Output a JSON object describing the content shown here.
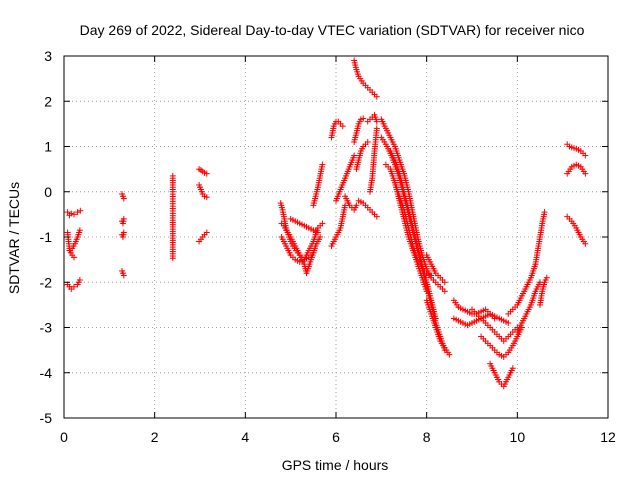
{
  "chart_data": {
    "type": "scatter",
    "title": "Day 269 of 2022, Sidereal Day-to-day VTEC variation (SDTVAR) for receiver nico",
    "xlabel": "GPS time / hours",
    "ylabel": "SDTVAR / TECUs",
    "xlim": [
      0,
      12
    ],
    "ylim": [
      -5,
      3
    ],
    "xticks": [
      0,
      2,
      4,
      6,
      8,
      10,
      12
    ],
    "yticks": [
      -5,
      -4,
      -3,
      -2,
      -1,
      0,
      1,
      2,
      3
    ],
    "xtick_labels": [
      "0",
      "2",
      "4",
      "6",
      "8",
      "10",
      "12"
    ],
    "ytick_labels": [
      "-5",
      "-4",
      "-3",
      "-2",
      "-1",
      "0",
      "1",
      "2",
      "3"
    ],
    "grid": true,
    "marker": "plus",
    "color": "#ff0000",
    "segments": [
      {
        "x": [
          0.08,
          0.12,
          0.16,
          0.22,
          0.3,
          0.36
        ],
        "y": [
          -0.45,
          -0.52,
          -0.48,
          -0.5,
          -0.45,
          -0.42
        ]
      },
      {
        "x": [
          0.08,
          0.1,
          0.12,
          0.15,
          0.18,
          0.22
        ],
        "y": [
          -0.9,
          -1.1,
          -1.25,
          -1.35,
          -1.4,
          -1.45
        ]
      },
      {
        "x": [
          0.12,
          0.18,
          0.24,
          0.3,
          0.35
        ],
        "y": [
          -1.3,
          -1.25,
          -1.15,
          -1.0,
          -0.85
        ]
      },
      {
        "x": [
          0.08,
          0.12,
          0.16,
          0.22,
          0.3,
          0.35
        ],
        "y": [
          -2.05,
          -2.1,
          -2.15,
          -2.1,
          -2.05,
          -1.95
        ]
      },
      {
        "x": [
          1.28,
          1.3,
          1.32
        ],
        "y": [
          -0.05,
          -0.1,
          -0.15
        ]
      },
      {
        "x": [
          1.28,
          1.3,
          1.32
        ],
        "y": [
          -0.65,
          -0.7,
          -0.6
        ]
      },
      {
        "x": [
          1.28,
          1.3,
          1.32
        ],
        "y": [
          -0.95,
          -1.0,
          -0.9
        ]
      },
      {
        "x": [
          1.28,
          1.3,
          1.32
        ],
        "y": [
          -1.75,
          -1.8,
          -1.85
        ]
      },
      {
        "x": [
          2.4,
          2.4,
          2.4,
          2.4
        ],
        "y": [
          0.35,
          0.0,
          -0.53,
          -1.47
        ]
      },
      {
        "x": [
          2.98,
          3.02,
          3.06,
          3.1,
          3.15
        ],
        "y": [
          0.5,
          0.48,
          0.45,
          0.42,
          0.4
        ]
      },
      {
        "x": [
          2.98,
          3.02,
          3.06,
          3.1,
          3.15
        ],
        "y": [
          0.15,
          0.05,
          -0.05,
          -0.1,
          -0.12
        ]
      },
      {
        "x": [
          2.98,
          3.02,
          3.06,
          3.1,
          3.15
        ],
        "y": [
          -1.1,
          -1.05,
          -1.0,
          -0.95,
          -0.9
        ]
      },
      {
        "x": [
          4.78,
          4.82,
          4.86,
          4.9,
          4.95,
          5.0,
          5.05,
          5.12,
          5.2,
          5.3,
          5.4,
          5.5
        ],
        "y": [
          -0.25,
          -0.4,
          -0.6,
          -0.8,
          -0.95,
          -1.1,
          -1.2,
          -1.3,
          -1.4,
          -1.5,
          -1.45,
          -1.35
        ]
      },
      {
        "x": [
          4.8,
          4.85,
          4.9,
          5.0,
          5.1,
          5.2,
          5.3,
          5.35,
          5.45,
          5.55,
          5.65
        ],
        "y": [
          -0.7,
          -0.75,
          -0.85,
          -1.0,
          -1.2,
          -1.4,
          -1.6,
          -1.8,
          -1.5,
          -1.2,
          -1.0
        ]
      },
      {
        "x": [
          4.8,
          4.9,
          5.0,
          5.1,
          5.2,
          5.3,
          5.4,
          5.5,
          5.6,
          5.7
        ],
        "y": [
          -1.0,
          -1.2,
          -1.4,
          -1.5,
          -1.55,
          -1.5,
          -1.3,
          -1.1,
          -0.8,
          -0.7
        ]
      },
      {
        "x": [
          5.0,
          5.1,
          5.2,
          5.3,
          5.4,
          5.5,
          5.6
        ],
        "y": [
          -0.6,
          -0.65,
          -0.7,
          -0.75,
          -0.8,
          -0.85,
          -0.9
        ]
      },
      {
        "x": [
          5.5,
          5.55,
          5.6,
          5.65,
          5.7
        ],
        "y": [
          -0.3,
          -0.1,
          0.1,
          0.35,
          0.6
        ]
      },
      {
        "x": [
          5.9,
          6.0,
          6.1,
          6.15,
          6.2
        ],
        "y": [
          -1.2,
          -1.0,
          -0.8,
          -0.55,
          -0.3
        ]
      },
      {
        "x": [
          5.9,
          5.95,
          6.0,
          6.05,
          6.1,
          6.15
        ],
        "y": [
          1.2,
          1.45,
          1.55,
          1.55,
          1.5,
          1.45
        ]
      },
      {
        "x": [
          6.0,
          6.1,
          6.2,
          6.3,
          6.4
        ],
        "y": [
          -0.2,
          0.05,
          0.3,
          0.55,
          0.8
        ]
      },
      {
        "x": [
          6.2,
          6.25,
          6.3,
          6.35,
          6.4,
          6.45
        ],
        "y": [
          -0.1,
          -0.2,
          -0.3,
          -0.35,
          -0.4,
          -0.3
        ]
      },
      {
        "x": [
          6.4,
          6.45,
          6.5,
          6.6,
          6.7,
          6.8,
          6.9
        ],
        "y": [
          2.9,
          2.7,
          2.55,
          2.4,
          2.3,
          2.2,
          2.1
        ]
      },
      {
        "x": [
          6.4,
          6.45,
          6.5,
          6.55,
          6.6
        ],
        "y": [
          1.1,
          1.3,
          1.5,
          1.6,
          1.62
        ]
      },
      {
        "x": [
          6.45,
          6.5,
          6.55,
          6.6,
          6.65,
          6.7
        ],
        "y": [
          0.5,
          0.7,
          0.9,
          1.0,
          1.05,
          1.1
        ]
      },
      {
        "x": [
          6.5,
          6.6,
          6.7,
          6.8,
          6.9
        ],
        "y": [
          -0.2,
          -0.25,
          -0.35,
          -0.45,
          -0.55
        ]
      },
      {
        "x": [
          6.7,
          6.75,
          6.8,
          6.85,
          6.9
        ],
        "y": [
          1.55,
          1.6,
          1.65,
          1.7,
          1.55
        ]
      },
      {
        "x": [
          6.75,
          6.8,
          6.85,
          6.9
        ],
        "y": [
          0.0,
          0.3,
          0.9,
          1.4
        ]
      },
      {
        "x": [
          7.0,
          7.05,
          7.1,
          7.2,
          7.3,
          7.4,
          7.5,
          7.6,
          7.7,
          7.8,
          7.9,
          8.0,
          8.1,
          8.2,
          8.3,
          8.4
        ],
        "y": [
          1.6,
          1.5,
          1.4,
          1.2,
          1.0,
          0.7,
          0.4,
          0.0,
          -0.5,
          -1.0,
          -1.4,
          -1.7,
          -1.9,
          -2.0,
          -2.1,
          -2.2
        ]
      },
      {
        "x": [
          7.0,
          7.1,
          7.2,
          7.3,
          7.4,
          7.5,
          7.6,
          7.7,
          7.8,
          7.9,
          8.0,
          8.1,
          8.2,
          8.3,
          8.4
        ],
        "y": [
          1.2,
          1.05,
          0.85,
          0.6,
          0.3,
          -0.1,
          -0.5,
          -0.9,
          -1.3,
          -1.7,
          -2.1,
          -2.5,
          -2.9,
          -3.2,
          -3.5
        ]
      },
      {
        "x": [
          7.1,
          7.2,
          7.3,
          7.4,
          7.5,
          7.6,
          7.7,
          7.8,
          7.9,
          8.0,
          8.1
        ],
        "y": [
          0.6,
          0.5,
          0.2,
          -0.1,
          -0.4,
          -0.8,
          -1.2,
          -1.5,
          -1.7,
          -1.8,
          -1.85
        ]
      },
      {
        "x": [
          7.2,
          7.3,
          7.4,
          7.5,
          7.6,
          7.7,
          7.8,
          7.9,
          8.0,
          8.1,
          8.2
        ],
        "y": [
          0.9,
          0.7,
          0.4,
          0.0,
          -0.4,
          -0.8,
          -1.2,
          -1.6,
          -2.0,
          -2.4,
          -2.8
        ]
      },
      {
        "x": [
          7.3,
          7.4,
          7.5,
          7.6,
          7.7,
          7.8,
          7.9,
          8.0
        ],
        "y": [
          0.2,
          -0.2,
          -0.6,
          -1.0,
          -1.3,
          -1.6,
          -1.9,
          -2.2
        ]
      },
      {
        "x": [
          8.0,
          8.1,
          8.2,
          8.3,
          8.4
        ],
        "y": [
          -1.4,
          -1.6,
          -1.8,
          -1.9,
          -2.0
        ]
      },
      {
        "x": [
          8.0,
          8.1,
          8.2,
          8.3,
          8.4,
          8.5
        ],
        "y": [
          -2.4,
          -2.7,
          -3.0,
          -3.3,
          -3.45,
          -3.6
        ]
      },
      {
        "x": [
          8.6,
          8.7,
          8.8,
          8.9,
          9.0,
          9.1,
          9.2,
          9.3,
          9.4,
          9.5
        ],
        "y": [
          -2.4,
          -2.55,
          -2.6,
          -2.65,
          -2.7,
          -2.7,
          -2.65,
          -2.6,
          -2.7,
          -2.8
        ]
      },
      {
        "x": [
          8.6,
          8.7,
          8.8,
          8.9,
          9.0,
          9.1,
          9.2,
          9.3,
          9.4,
          9.5,
          9.6,
          9.7,
          9.8
        ],
        "y": [
          -2.8,
          -2.85,
          -2.9,
          -2.95,
          -2.9,
          -2.85,
          -2.8,
          -2.75,
          -2.7,
          -2.75,
          -2.8,
          -2.85,
          -2.9
        ]
      },
      {
        "x": [
          9.0,
          9.1,
          9.2,
          9.3,
          9.4,
          9.5,
          9.6,
          9.7,
          9.8,
          9.9,
          10.0
        ],
        "y": [
          -2.6,
          -2.7,
          -2.8,
          -2.9,
          -3.0,
          -3.1,
          -3.2,
          -3.3,
          -3.2,
          -3.1,
          -3.0
        ]
      },
      {
        "x": [
          9.2,
          9.3,
          9.4,
          9.5,
          9.6,
          9.7,
          9.8,
          9.9,
          10.0,
          10.1
        ],
        "y": [
          -3.2,
          -3.3,
          -3.4,
          -3.5,
          -3.6,
          -3.65,
          -3.55,
          -3.4,
          -3.2,
          -3.0
        ]
      },
      {
        "x": [
          9.4,
          9.5,
          9.6,
          9.7,
          9.8,
          9.9
        ],
        "y": [
          -3.8,
          -4.0,
          -4.2,
          -4.3,
          -4.1,
          -3.9
        ]
      },
      {
        "x": [
          9.8,
          9.9,
          10.0,
          10.1,
          10.2,
          10.3,
          10.4
        ],
        "y": [
          -2.7,
          -2.6,
          -2.5,
          -2.3,
          -2.1,
          -1.9,
          -1.6
        ]
      },
      {
        "x": [
          10.0,
          10.1,
          10.2,
          10.3,
          10.4,
          10.5
        ],
        "y": [
          -3.1,
          -2.9,
          -2.7,
          -2.5,
          -2.2,
          -2.0
        ]
      },
      {
        "x": [
          10.4,
          10.45,
          10.5,
          10.55,
          10.6
        ],
        "y": [
          -1.6,
          -1.3,
          -1.0,
          -0.7,
          -0.45
        ]
      },
      {
        "x": [
          10.5,
          10.55,
          10.6,
          10.65
        ],
        "y": [
          -2.5,
          -2.2,
          -2.0,
          -1.9
        ]
      },
      {
        "x": [
          11.1,
          11.15,
          11.2,
          11.3,
          11.4,
          11.5
        ],
        "y": [
          1.05,
          1.0,
          0.98,
          0.95,
          0.9,
          0.8
        ]
      },
      {
        "x": [
          11.1,
          11.2,
          11.3,
          11.4,
          11.5
        ],
        "y": [
          0.4,
          0.55,
          0.6,
          0.55,
          0.4
        ]
      },
      {
        "x": [
          11.1,
          11.2,
          11.3,
          11.4,
          11.5
        ],
        "y": [
          -0.55,
          -0.65,
          -0.8,
          -1.0,
          -1.15
        ]
      }
    ]
  }
}
